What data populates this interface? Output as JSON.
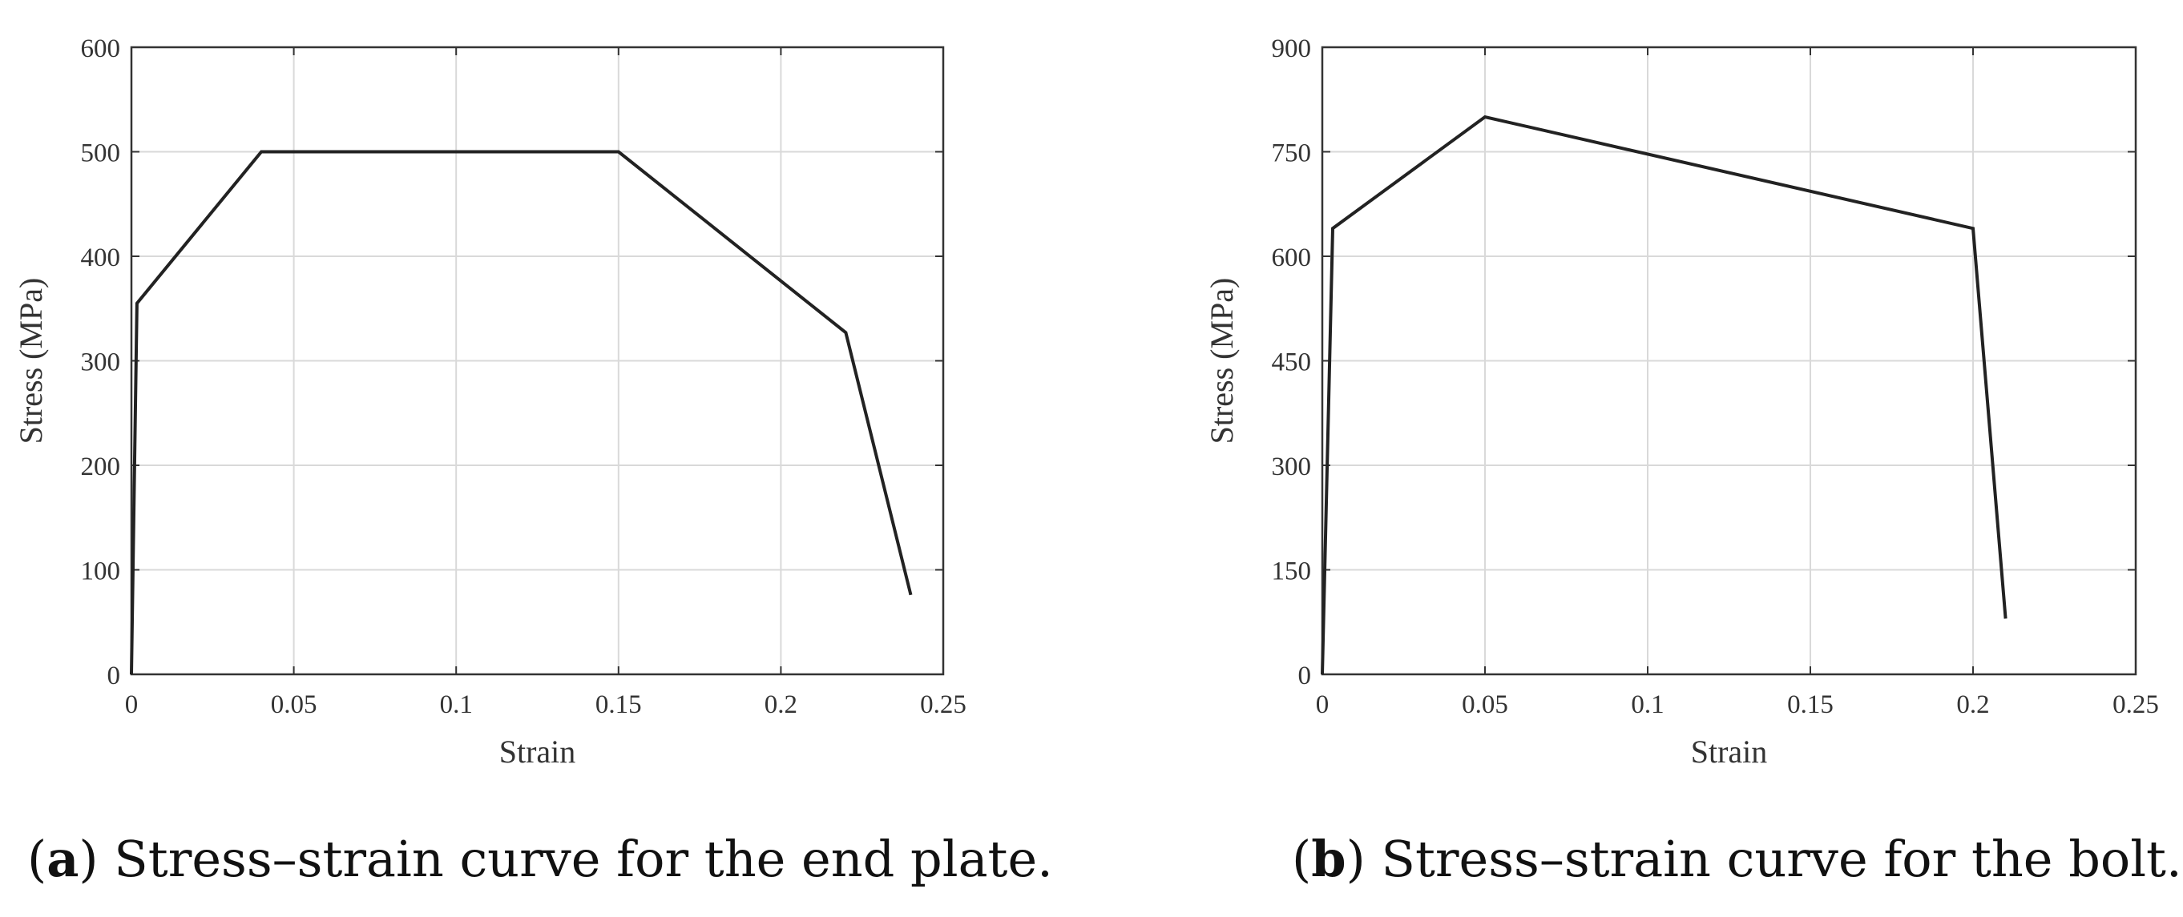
{
  "chart_data": [
    {
      "id": "a",
      "type": "line",
      "title": "",
      "xlabel": "Strain",
      "ylabel": "Stress (MPa)",
      "xlim": [
        0,
        0.25
      ],
      "ylim": [
        0,
        600
      ],
      "xticks": [
        0,
        0.05,
        0.1,
        0.15,
        0.2,
        0.25
      ],
      "xtick_labels": [
        "0",
        "0.05",
        "0.1",
        "0.15",
        "0.2",
        "0.25"
      ],
      "yticks": [
        0,
        100,
        200,
        300,
        400,
        500,
        600
      ],
      "ytick_labels": [
        "0",
        "100",
        "200",
        "300",
        "400",
        "500",
        "600"
      ],
      "grid": true,
      "series": [
        {
          "name": "End plate",
          "color": "#222222",
          "x": [
            0,
            0.0017,
            0.04,
            0.15,
            0.22,
            0.24
          ],
          "y": [
            0,
            355,
            500,
            500,
            327,
            76
          ]
        }
      ],
      "caption": {
        "label": "a",
        "text": " Stress–strain curve for the end plate."
      }
    },
    {
      "id": "b",
      "type": "line",
      "title": "",
      "xlabel": "Strain",
      "ylabel": "Stress (MPa)",
      "xlim": [
        0,
        0.25
      ],
      "ylim": [
        0,
        900
      ],
      "xticks": [
        0,
        0.05,
        0.1,
        0.15,
        0.2,
        0.25
      ],
      "xtick_labels": [
        "0",
        "0.05",
        "0.1",
        "0.15",
        "0.2",
        "0.25"
      ],
      "yticks": [
        0,
        150,
        300,
        450,
        600,
        750,
        900
      ],
      "ytick_labels": [
        "0",
        "150",
        "300",
        "450",
        "600",
        "750",
        "900"
      ],
      "grid": true,
      "series": [
        {
          "name": "Bolt",
          "color": "#222222",
          "x": [
            0,
            0.0032,
            0.05,
            0.2,
            0.21
          ],
          "y": [
            0,
            640,
            800,
            640,
            80
          ]
        }
      ],
      "caption": {
        "label": "b",
        "text": " Stress–strain curve for the bolt."
      }
    }
  ],
  "style": {
    "grid_color": "#d9d9d9",
    "axis_color": "#333333",
    "line_color": "#222222"
  }
}
